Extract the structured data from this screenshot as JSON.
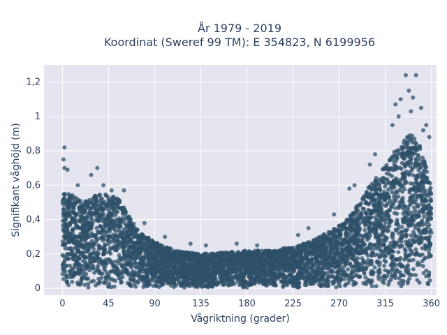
{
  "chart_data": {
    "type": "scatter",
    "title": "År 1979 - 2019",
    "subtitle": "Koordinat (Sweref 99 TM): E 354823, N 6199956",
    "xlabel": "Vågriktning (grader)",
    "ylabel": "Signifikant våghöjd (m)",
    "xlim": [
      -18,
      365
    ],
    "ylim": [
      -0.04,
      1.3
    ],
    "x_ticks": [
      0,
      45,
      90,
      135,
      180,
      225,
      270,
      315,
      360
    ],
    "x_tick_labels": [
      "0",
      "45",
      "90",
      "135",
      "180",
      "225",
      "270",
      "315",
      "360"
    ],
    "y_ticks": [
      0,
      0.2,
      0.4,
      0.6,
      0.8,
      1.0,
      1.2
    ],
    "y_tick_labels": [
      "0",
      "0,2",
      "0,4",
      "0,6",
      "0,8",
      "1",
      "1,2"
    ],
    "grid": true,
    "legend": "none",
    "marker_color": "#2d5068",
    "upper_envelope": [
      {
        "x": 0,
        "y": 0.55
      },
      {
        "x": 10,
        "y": 0.55
      },
      {
        "x": 20,
        "y": 0.5
      },
      {
        "x": 35,
        "y": 0.55
      },
      {
        "x": 45,
        "y": 0.55
      },
      {
        "x": 55,
        "y": 0.52
      },
      {
        "x": 65,
        "y": 0.42
      },
      {
        "x": 75,
        "y": 0.33
      },
      {
        "x": 90,
        "y": 0.27
      },
      {
        "x": 110,
        "y": 0.22
      },
      {
        "x": 135,
        "y": 0.2
      },
      {
        "x": 160,
        "y": 0.21
      },
      {
        "x": 180,
        "y": 0.22
      },
      {
        "x": 200,
        "y": 0.22
      },
      {
        "x": 225,
        "y": 0.24
      },
      {
        "x": 245,
        "y": 0.28
      },
      {
        "x": 260,
        "y": 0.33
      },
      {
        "x": 275,
        "y": 0.38
      },
      {
        "x": 290,
        "y": 0.5
      },
      {
        "x": 300,
        "y": 0.6
      },
      {
        "x": 315,
        "y": 0.72
      },
      {
        "x": 330,
        "y": 0.85
      },
      {
        "x": 340,
        "y": 0.9
      },
      {
        "x": 350,
        "y": 0.82
      },
      {
        "x": 360,
        "y": 0.6
      }
    ],
    "outliers": [
      {
        "x": 2,
        "y": 0.82
      },
      {
        "x": 1,
        "y": 0.75
      },
      {
        "x": 2,
        "y": 0.7
      },
      {
        "x": 5,
        "y": 0.69
      },
      {
        "x": 34,
        "y": 0.7
      },
      {
        "x": 28,
        "y": 0.66
      },
      {
        "x": 40,
        "y": 0.6
      },
      {
        "x": 335,
        "y": 1.24
      },
      {
        "x": 345,
        "y": 1.24
      },
      {
        "x": 342,
        "y": 1.11
      },
      {
        "x": 330,
        "y": 1.1
      },
      {
        "x": 325,
        "y": 1.07
      },
      {
        "x": 350,
        "y": 1.05
      },
      {
        "x": 340,
        "y": 1.03
      },
      {
        "x": 322,
        "y": 0.95
      },
      {
        "x": 352,
        "y": 0.92
      },
      {
        "x": 358,
        "y": 0.88
      },
      {
        "x": 305,
        "y": 0.78
      },
      {
        "x": 300,
        "y": 0.72
      },
      {
        "x": 285,
        "y": 0.6
      },
      {
        "x": 280,
        "y": 0.58
      },
      {
        "x": 265,
        "y": 0.43
      },
      {
        "x": 230,
        "y": 0.31
      },
      {
        "x": 240,
        "y": 0.35
      },
      {
        "x": 125,
        "y": 0.26
      },
      {
        "x": 140,
        "y": 0.25
      },
      {
        "x": 170,
        "y": 0.26
      },
      {
        "x": 190,
        "y": 0.25
      },
      {
        "x": 100,
        "y": 0.3
      },
      {
        "x": 80,
        "y": 0.38
      },
      {
        "x": 60,
        "y": 0.57
      },
      {
        "x": 48,
        "y": 0.57
      },
      {
        "x": 15,
        "y": 0.6
      },
      {
        "x": 355,
        "y": 0.95
      },
      {
        "x": 338,
        "y": 1.15
      },
      {
        "x": 328,
        "y": 1.0
      }
    ]
  }
}
